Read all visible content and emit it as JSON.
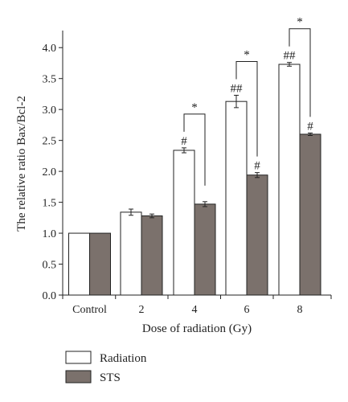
{
  "chart_data": {
    "type": "bar",
    "categories": [
      "Control",
      "2",
      "4",
      "6",
      "8"
    ],
    "series": [
      {
        "name": "Radiation",
        "values": [
          1.0,
          1.34,
          2.34,
          3.13,
          3.73
        ],
        "errors": [
          0,
          0.05,
          0.04,
          0.1,
          0.03
        ],
        "marks": [
          "",
          "",
          "#",
          "##",
          "##"
        ],
        "color": "#ffffff"
      },
      {
        "name": "STS",
        "values": [
          1.0,
          1.28,
          1.47,
          1.94,
          2.6
        ],
        "errors": [
          0,
          0.03,
          0.04,
          0.04,
          0.02
        ],
        "marks": [
          "",
          "",
          "",
          "#",
          "#"
        ],
        "color": "#7b716c"
      }
    ],
    "comparisons": [
      {
        "category_index": 2,
        "label": "*"
      },
      {
        "category_index": 3,
        "label": "*"
      },
      {
        "category_index": 4,
        "label": "*"
      }
    ],
    "title": "",
    "xlabel": "Dose of radiation (Gy)",
    "ylabel": "The relative ratio Bax/Bcl-2",
    "ylim": [
      0,
      4.25
    ],
    "yticks": [
      "0.0",
      "0.5",
      "1.0",
      "1.5",
      "2.0",
      "2.5",
      "3.0",
      "3.5",
      "4.0"
    ],
    "grid": false,
    "legend_position": "bottom-left",
    "colors": {
      "axis": "#222222",
      "bar_stroke": "#222222"
    }
  }
}
